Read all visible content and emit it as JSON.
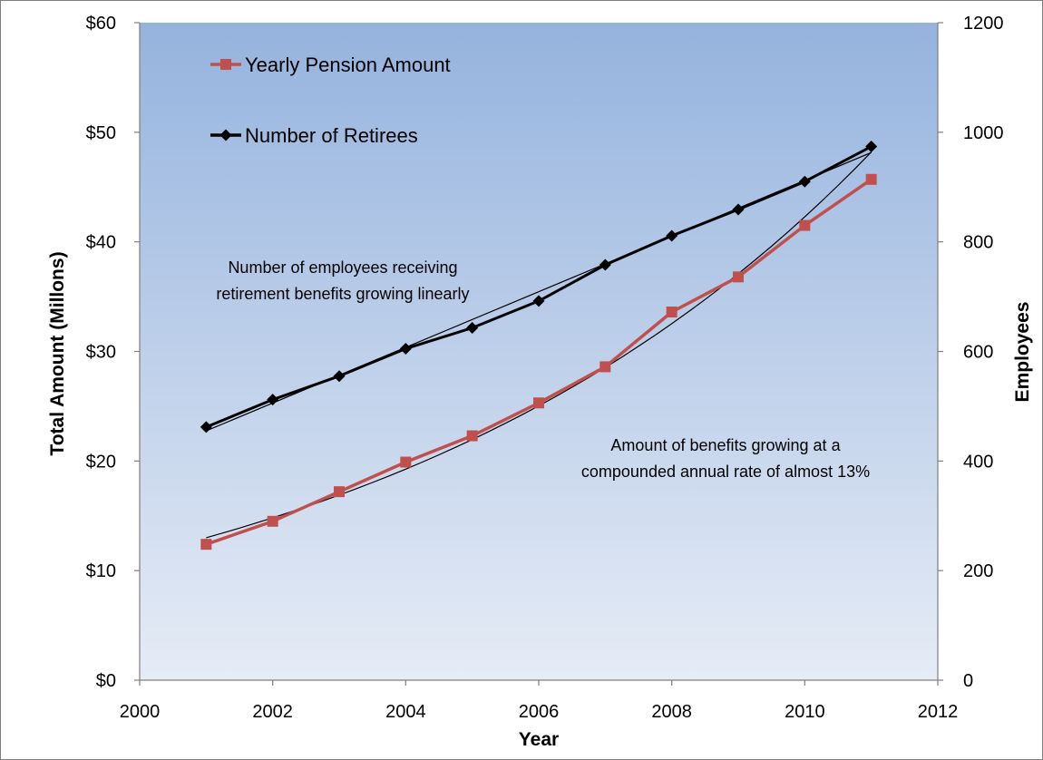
{
  "chart_data": {
    "type": "line",
    "title": "",
    "xlabel": "Year",
    "ylabel_left": "Total Amount (Millons)",
    "ylabel_right": "Employees",
    "xlim": [
      2000,
      2012
    ],
    "ylim_left": [
      0,
      60
    ],
    "ylim_right": [
      0,
      1200
    ],
    "x_ticks": [
      "2000",
      "2002",
      "2004",
      "2006",
      "2008",
      "2010",
      "2012"
    ],
    "y_left_ticks": [
      "$0",
      "$10",
      "$20",
      "$30",
      "$40",
      "$50",
      "$60"
    ],
    "y_right_ticks": [
      "0",
      "200",
      "400",
      "600",
      "800",
      "1000",
      "1200"
    ],
    "grid": false,
    "legend_position": "top-left",
    "x": [
      2001,
      2002,
      2003,
      2004,
      2005,
      2006,
      2007,
      2008,
      2009,
      2010,
      2011
    ],
    "series": [
      {
        "name": "Yearly Pension Amount",
        "axis": "left",
        "color": "#c0504d",
        "marker": "square",
        "values": [
          12.4,
          14.5,
          17.2,
          19.9,
          22.3,
          25.3,
          28.6,
          33.6,
          36.8,
          41.5,
          45.7
        ]
      },
      {
        "name": "Number of Retirees",
        "axis": "right",
        "color": "#000000",
        "marker": "diamond",
        "values": [
          462,
          512,
          555,
          605,
          643,
          692,
          758,
          811,
          859,
          910,
          974
        ]
      }
    ],
    "trendlines": [
      {
        "of": "Yearly Pension Amount",
        "kind": "exponential",
        "axis": "left",
        "x": [
          2001,
          2011
        ],
        "y": [
          13.0,
          48.2
        ]
      },
      {
        "of": "Number of Retirees",
        "kind": "linear",
        "axis": "right",
        "x": [
          2001,
          2011
        ],
        "y": [
          455,
          963
        ]
      }
    ],
    "annotations": [
      {
        "lines": [
          "Number of employees receiving",
          "retirement benefits growing linearly"
        ]
      },
      {
        "lines": [
          "Amount of benefits growing at a",
          "compounded annual rate of almost 13%"
        ]
      }
    ],
    "colors": {
      "plot_top": "#95b3de",
      "plot_bottom": "#e6ecf6"
    }
  }
}
